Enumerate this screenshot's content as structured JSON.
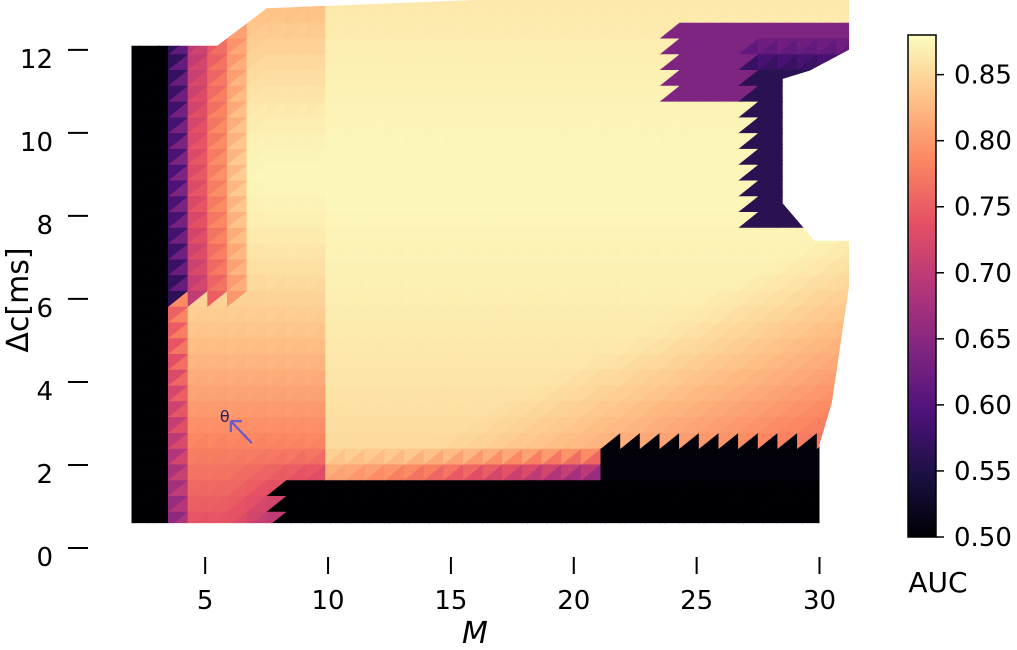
{
  "chart_data": {
    "type": "heatmap",
    "title": "",
    "xlabel": "M",
    "ylabel": "Δc[ms]",
    "xlim": [
      1.9,
      31.2
    ],
    "ylim": [
      0,
      13.2
    ],
    "x_ticks": [
      5,
      10,
      15,
      20,
      25,
      30
    ],
    "y_ticks": [
      0,
      2,
      4,
      6,
      8,
      10,
      12
    ],
    "colormap": "magma",
    "colorbar": {
      "label": "AUC",
      "min": 0.5,
      "max": 0.88,
      "ticks": [
        "0.50",
        "0.55",
        "0.60",
        "0.65",
        "0.70",
        "0.75",
        "0.80",
        "0.85"
      ]
    },
    "marker": {
      "label": "θ",
      "x": 5.8,
      "y": 3.2
    },
    "grid": false,
    "legend": "none"
  }
}
